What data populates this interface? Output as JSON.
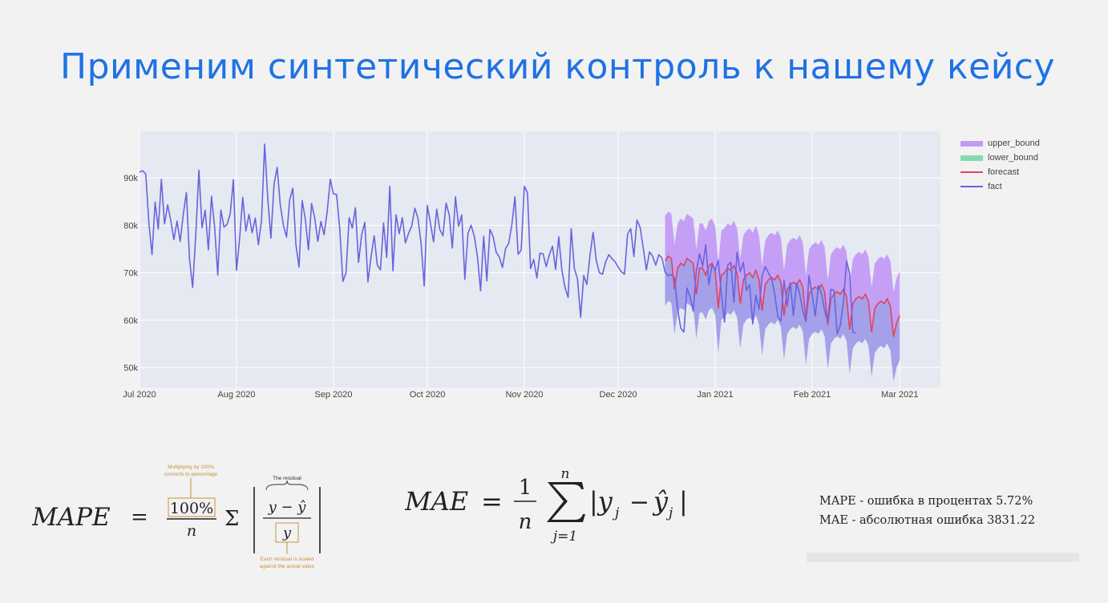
{
  "slide": {
    "title": "Применим синтетический контроль к нашему кейсу"
  },
  "legend": {
    "items": [
      {
        "label": "upper_bound",
        "color": "#c39bf5"
      },
      {
        "label": "lower_bound",
        "color": "#88d9b0"
      },
      {
        "label": "forecast",
        "color": "#e0455a"
      },
      {
        "label": "fact",
        "color": "#6a63de"
      }
    ]
  },
  "chart_data": {
    "type": "line",
    "title": "",
    "xlabel": "",
    "ylabel": "",
    "x_start": "2020-07-01",
    "x_ticks": [
      {
        "date": "2020-07-01",
        "label": "Jul 2020"
      },
      {
        "date": "2020-08-01",
        "label": "Aug 2020"
      },
      {
        "date": "2020-09-01",
        "label": "Sep 2020"
      },
      {
        "date": "2020-10-01",
        "label": "Oct 2020"
      },
      {
        "date": "2020-11-01",
        "label": "Nov 2020"
      },
      {
        "date": "2020-12-01",
        "label": "Dec 2020"
      },
      {
        "date": "2021-01-01",
        "label": "Jan 2021"
      },
      {
        "date": "2021-02-01",
        "label": "Feb 2021"
      },
      {
        "date": "2021-03-01",
        "label": "Mar 2021"
      }
    ],
    "y_ticks": [
      {
        "value": 50000,
        "label": "50k"
      },
      {
        "value": 60000,
        "label": "60k"
      },
      {
        "value": 70000,
        "label": "70k"
      },
      {
        "value": 80000,
        "label": "80k"
      },
      {
        "value": 90000,
        "label": "90k"
      }
    ],
    "xlim": [
      "2020-07-01",
      "2021-03-14"
    ],
    "ylim": [
      45800,
      99800
    ],
    "grid": true,
    "legend_position": "right",
    "series": [
      {
        "name": "fact",
        "color": "#6a63de",
        "values": [
          [
            91.2,
            91.5,
            90.8,
            80.5,
            73.8,
            84.9,
            79.2,
            89.7,
            80.3,
            84.3,
            81.0,
            77.0,
            80.9,
            76.6,
            82.3,
            86.9,
            72.8,
            66.9,
            78.0,
            91.6,
            79.5,
            83.2,
            74.8,
            86.1,
            79.6,
            69.5,
            83.2,
            79.6,
            80.2,
            82.5,
            89.6,
            70.5,
            77.3,
            85.9,
            78.8,
            82.3,
            78.4,
            81.5,
            75.9,
            81.1,
            97.1,
            85.6,
            77.3,
            88.6,
            92.2,
            84.3,
            80.0,
            77.5,
            85.3,
            87.8,
            75.9,
            71.2,
            85.2,
            81.3,
            74.8,
            84.6,
            81.6,
            76.6,
            80.8,
            78.0,
            82.9,
            89.7,
            86.6,
            86.5,
            79.2
          ],
          [
            68.2,
            70.0,
            81.6,
            79.4,
            83.7,
            72.2,
            78.0,
            80.6,
            68.1,
            73.3,
            77.8,
            71.6,
            70.6,
            80.5,
            73.2,
            88.2,
            70.4,
            82.2,
            78.2,
            81.6,
            76.3,
            78.3,
            79.8,
            83.6,
            81.5,
            76.2,
            67.2,
            84.2,
            80.4,
            76.5,
            83.4,
            79.1,
            77.8,
            84.7,
            82.2,
            75.2,
            86.0,
            79.8,
            82.2,
            68.6,
            78.3,
            80.0,
            77.7,
            73.4,
            66.2,
            77.7,
            68.3,
            79.1,
            77.7,
            74.3,
            73.3,
            71.1,
            75.1,
            76.2,
            80.1,
            86.0,
            73.9,
            74.8,
            88.2,
            86.9,
            70.9,
            72.8,
            68.9,
            74.1,
            74.0,
            71.3,
            73.8,
            75.6
          ],
          [
            70.7,
            77.6,
            70.6,
            66.9,
            64.8,
            79.3,
            70.9,
            68.7,
            60.6,
            69.4,
            67.5,
            73.7,
            78.5,
            72.6,
            70.0,
            69.7,
            72.3,
            73.8,
            73.0,
            72.3,
            71.2,
            70.2,
            69.7,
            78.2,
            79.3,
            73.4,
            81.1,
            79.6,
            75.2,
            70.6,
            74.4,
            73.5,
            71.6,
            73.8,
            73.1,
            70.1,
            69.4,
            69.6,
            68.9,
            62.4,
            58.3,
            57.5,
            66.8,
            64.8,
            61.9,
            70.4,
            74.0,
            71.4,
            75.9,
            67.5,
            71.7,
            70.5,
            72.6,
            65.5,
            59.6,
            71.6,
            72.2,
            63.8,
            74.3,
            70.2,
            72.2,
            66.3,
            67.5,
            59.2,
            65.3,
            62.3,
            69.4,
            71.3,
            70.0,
            68.7,
            65.7,
            60.8,
            59.8,
            68.4,
            63.0,
            67.9,
            61.0,
            67.8,
            65.6,
            62.0,
            59.7,
            69.4,
            65.3,
            60.9,
            67.3,
            65.5,
            62.0,
            59.7,
            66.5,
            66.3,
            57.1,
            58.9,
            63.8,
            72.5,
            69.8,
            57.5,
            57.3
          ]
        ]
      },
      {
        "name": "forecast",
        "color": "#e0455a",
        "values": [
          [
            72.5,
            73.5,
            73.0,
            66.5,
            71.0,
            72.0,
            71.5,
            73.0,
            72.5,
            72.0,
            65.5,
            71.0,
            71.0,
            69.5,
            71.5,
            72.0,
            70.5,
            62.5,
            69.5,
            70.0,
            71.0,
            70.5,
            71.5,
            70.0,
            63.5,
            68.5,
            69.5,
            70.0,
            69.0,
            70.5,
            68.5,
            62.0,
            67.5,
            68.5,
            69.0,
            68.5,
            69.5,
            68.0,
            61.0,
            66.5,
            67.5,
            68.0,
            67.5,
            68.5,
            67.0,
            60.0,
            65.5,
            66.5,
            67.0,
            66.5,
            67.5,
            66.0,
            59.0,
            64.5,
            65.5,
            66.0,
            65.5,
            66.5,
            65.0,
            58.0,
            63.5,
            64.5,
            65.0,
            64.5,
            65.5,
            64.0,
            57.5,
            62.5,
            63.5,
            64.0,
            63.5,
            64.5,
            63.0,
            56.5,
            59.5,
            61.0
          ]
        ]
      },
      {
        "name": "upper_bound",
        "color": "#c39bf5",
        "values": [
          [
            82.0,
            82.9,
            82.4,
            75.9,
            80.4,
            81.4,
            80.9,
            82.4,
            81.9,
            81.4,
            74.9,
            80.4,
            80.4,
            78.9,
            80.9,
            81.4,
            79.9,
            71.9,
            78.9,
            79.4,
            80.4,
            79.9,
            80.9,
            79.4,
            72.9,
            77.9,
            78.9,
            79.4,
            78.4,
            79.9,
            77.9,
            71.4,
            76.9,
            77.9,
            78.4,
            77.9,
            78.9,
            77.4,
            70.4,
            75.9,
            76.9,
            77.4,
            76.9,
            77.9,
            76.4,
            69.4,
            74.9,
            75.9,
            76.4,
            75.9,
            76.9,
            75.4,
            68.4,
            73.9,
            74.9,
            75.4,
            74.9,
            75.9,
            74.4,
            67.4,
            72.9,
            73.9,
            74.4,
            73.9,
            74.9,
            73.4,
            66.9,
            71.9,
            72.9,
            73.4,
            72.9,
            73.9,
            72.4,
            65.9,
            68.9,
            70.4
          ]
        ]
      },
      {
        "name": "lower_bound",
        "color": "#88d9b0",
        "values": [
          [
            63.0,
            64.1,
            63.6,
            57.1,
            61.6,
            62.6,
            62.1,
            63.6,
            63.1,
            62.6,
            56.1,
            61.6,
            61.6,
            60.1,
            62.1,
            62.6,
            61.1,
            53.1,
            60.1,
            60.6,
            61.6,
            61.1,
            62.1,
            60.6,
            54.1,
            59.1,
            60.1,
            60.6,
            59.6,
            61.1,
            59.1,
            52.6,
            58.1,
            59.1,
            59.6,
            59.1,
            60.1,
            58.6,
            51.6,
            57.1,
            58.1,
            58.6,
            58.1,
            59.1,
            57.6,
            50.6,
            56.1,
            57.1,
            57.6,
            57.1,
            58.1,
            56.6,
            49.6,
            55.1,
            56.1,
            56.6,
            56.1,
            57.1,
            55.6,
            48.6,
            54.1,
            55.1,
            55.6,
            55.1,
            56.1,
            54.6,
            48.1,
            53.1,
            54.1,
            54.6,
            54.1,
            55.1,
            53.6,
            47.1,
            50.1,
            51.6
          ]
        ]
      }
    ],
    "units": "thousands",
    "forecast_start": "2020-12-16"
  },
  "formulas": {
    "mape": {
      "lhs": "MAPE",
      "eq": "=",
      "numerator": "100%",
      "denominator": "n",
      "sigma": "Σ",
      "residual_num": "y − ŷ",
      "residual_den": "y",
      "ann_top": "Multiplying by 100% converts to percentage",
      "ann_top_line1": "Multiplying by 100%",
      "ann_top_line2": "converts to percentage",
      "ann_residual": "The residual",
      "ann_bottom_line1": "Each residual is scaled",
      "ann_bottom_line2": "against the actual value"
    },
    "mae": {
      "lhs": "MAE",
      "eq": "=",
      "frac_num": "1",
      "frac_den": "n",
      "sum_top": "n",
      "sum_bottom": "j=1",
      "body": "|y",
      "sub_j": "j",
      "minus": "−",
      "yhat": "ŷ",
      "close": "|"
    }
  },
  "metrics": {
    "mape_line": "MAPE - ошибка в процентах 5.72%",
    "mae_line": "MAE - абсолютная ошибка 3831.22"
  }
}
